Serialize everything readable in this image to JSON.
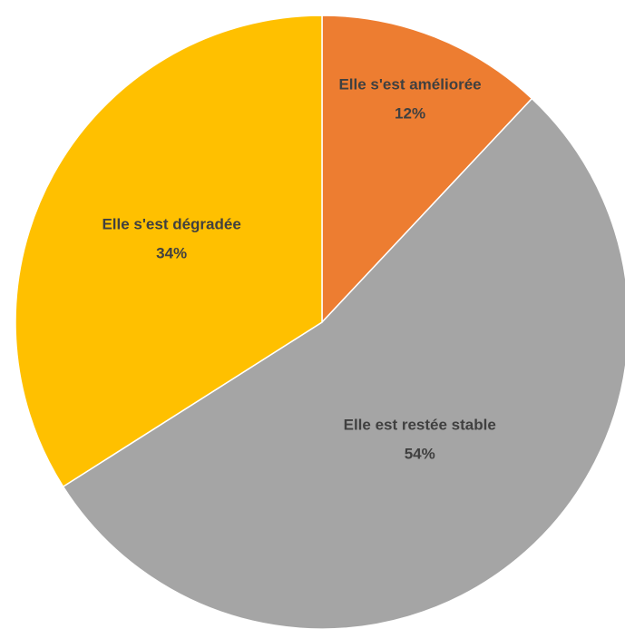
{
  "chart_data": {
    "type": "pie",
    "categories": [
      "Elle s'est améliorée",
      "Elle est restée stable",
      "Elle s'est dégradée"
    ],
    "values": [
      12,
      54,
      34
    ],
    "value_labels": [
      "12%",
      "54%",
      "34%"
    ],
    "colors": [
      "#ED7D31",
      "#A5A5A5",
      "#FFC000"
    ]
  }
}
